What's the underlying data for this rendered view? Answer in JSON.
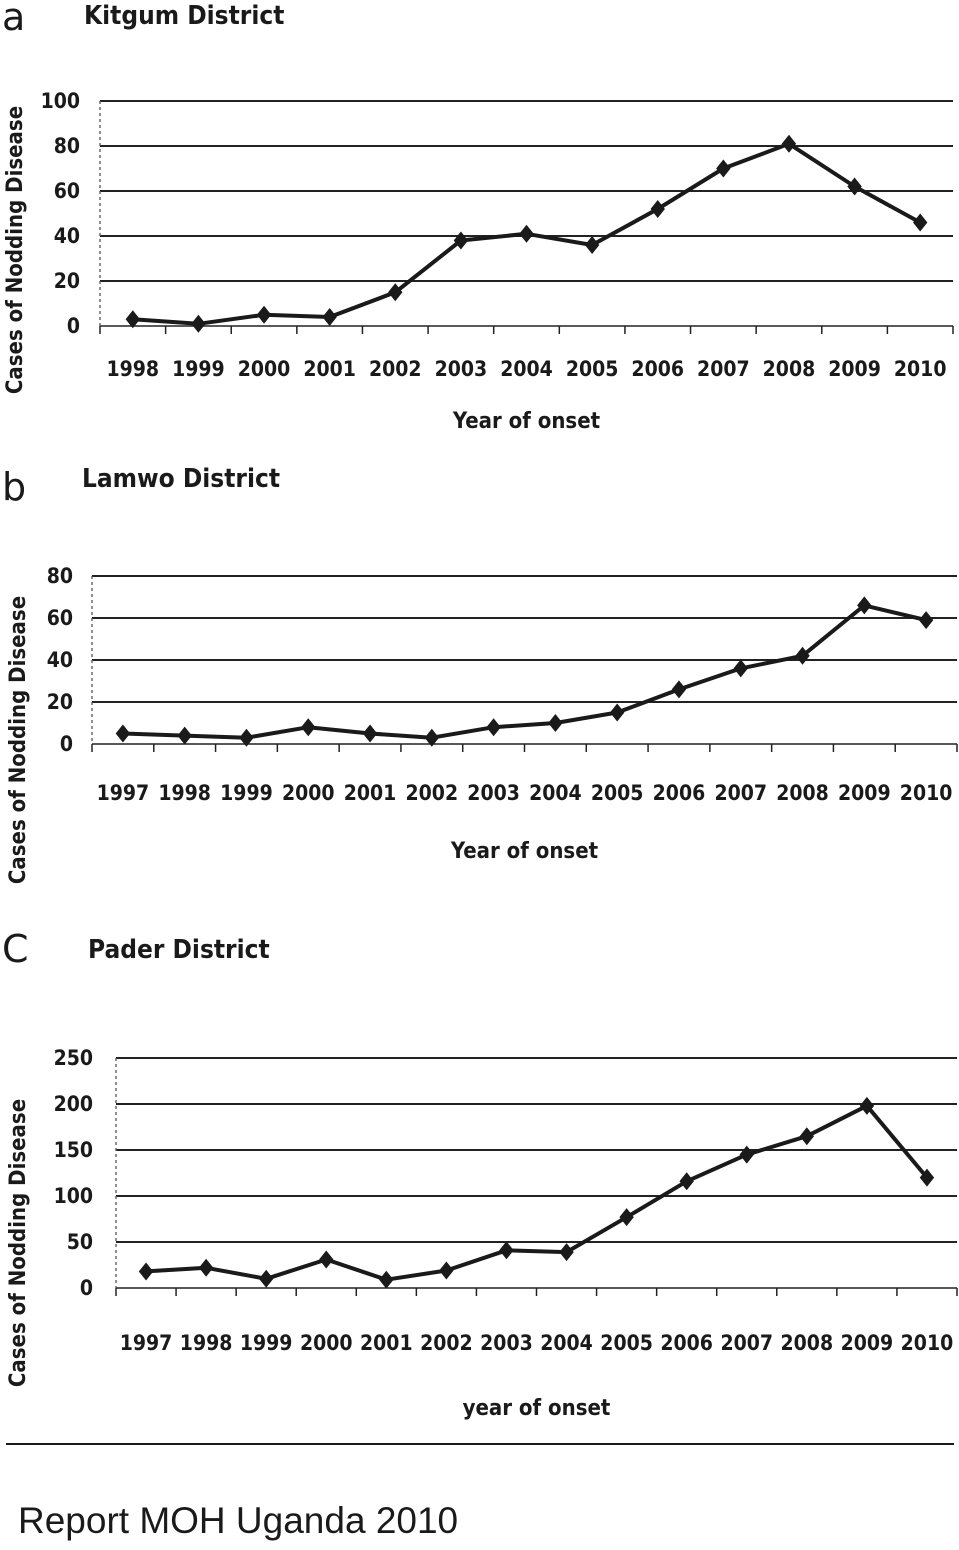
{
  "chart_data": [
    {
      "type": "line",
      "panel_letter": "a",
      "title": "Kitgum District",
      "xlabel": "Year of onset",
      "ylabel": "Cases of Nodding Disease",
      "ylim": [
        0,
        100
      ],
      "yticks": [
        0,
        20,
        40,
        60,
        80,
        100
      ],
      "grid": true,
      "categories": [
        "1998",
        "1999",
        "2000",
        "2001",
        "2002",
        "2003",
        "2004",
        "2005",
        "2006",
        "2007",
        "2008",
        "2009",
        "2010"
      ],
      "values": [
        3,
        1,
        5,
        4,
        15,
        38,
        41,
        36,
        52,
        70,
        81,
        62,
        46
      ]
    },
    {
      "type": "line",
      "panel_letter": "b",
      "title": "Lamwo District",
      "xlabel": "Year of onset",
      "ylabel": "Cases of Nodding Disease",
      "ylim": [
        0,
        80
      ],
      "yticks": [
        0,
        20,
        40,
        60,
        80
      ],
      "grid": true,
      "categories": [
        "1997",
        "1998",
        "1999",
        "2000",
        "2001",
        "2002",
        "2003",
        "2004",
        "2005",
        "2006",
        "2007",
        "2008",
        "2009",
        "2010"
      ],
      "values": [
        5,
        4,
        3,
        8,
        5,
        3,
        8,
        10,
        15,
        26,
        36,
        42,
        66,
        59
      ]
    },
    {
      "type": "line",
      "panel_letter": "C",
      "title": "Pader District",
      "xlabel": "year of onset",
      "ylabel": "Cases of Nodding Disease",
      "ylim": [
        0,
        250
      ],
      "yticks": [
        0,
        50,
        100,
        150,
        200,
        250
      ],
      "grid": true,
      "categories": [
        "1997",
        "1998",
        "1999",
        "2000",
        "2001",
        "2002",
        "2003",
        "2004",
        "2005",
        "2006",
        "2007",
        "2008",
        "2009",
        "2010"
      ],
      "values": [
        18,
        22,
        10,
        31,
        9,
        19,
        41,
        39,
        77,
        116,
        145,
        165,
        198,
        120
      ]
    }
  ],
  "source_note": "Report MOH Uganda 2010"
}
